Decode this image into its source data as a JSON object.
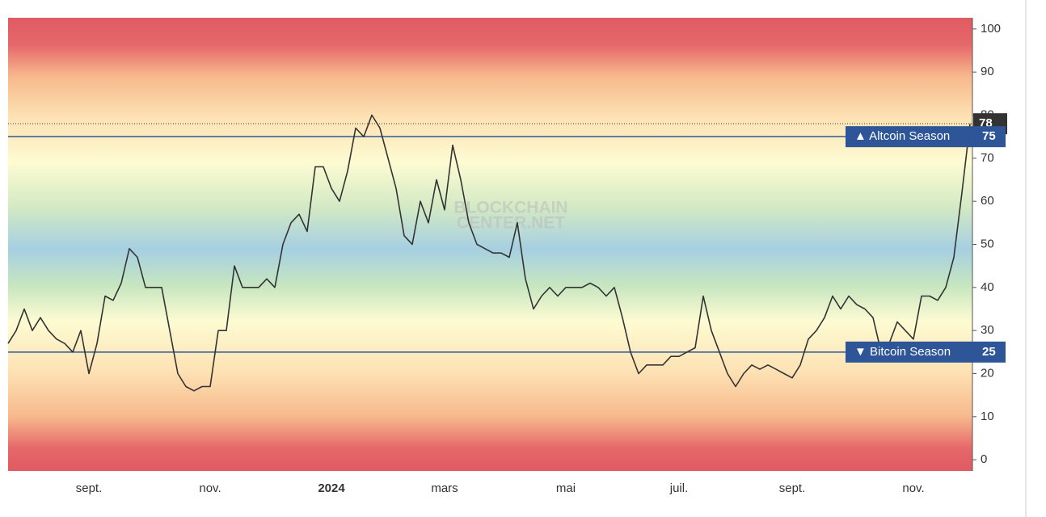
{
  "chart_data": {
    "type": "line",
    "watermark": [
      "BLOCKCHAIN",
      "CENTER.NET"
    ],
    "categories": [
      null,
      null,
      null,
      null,
      null,
      null,
      null,
      null,
      null,
      null,
      "sept.",
      null,
      null,
      null,
      null,
      null,
      null,
      null,
      null,
      null,
      null,
      null,
      null,
      null,
      null,
      "nov.",
      null,
      null,
      null,
      null,
      null,
      null,
      null,
      null,
      null,
      null,
      null,
      null,
      null,
      null,
      "2024",
      null,
      null,
      null,
      null,
      null,
      null,
      null,
      null,
      null,
      null,
      null,
      null,
      null,
      "mars",
      null,
      null,
      null,
      null,
      null,
      null,
      null,
      null,
      null,
      null,
      null,
      null,
      null,
      null,
      "mai",
      null,
      null,
      null,
      null,
      null,
      null,
      null,
      null,
      null,
      null,
      null,
      null,
      null,
      "juil.",
      null,
      null,
      null,
      null,
      null,
      null,
      null,
      null,
      null,
      null,
      null,
      null,
      null,
      "sept.",
      null,
      null,
      null,
      null,
      null,
      null,
      null,
      null,
      null,
      null,
      null,
      null,
      null,
      null,
      "nov.",
      null,
      null,
      null,
      null,
      null,
      null,
      null
    ],
    "series": [
      {
        "color": "#333333",
        "values": [
          27,
          30,
          35,
          30,
          33,
          30,
          28,
          27,
          25,
          30,
          20,
          27,
          38,
          37,
          41,
          49,
          47,
          40,
          40,
          40,
          30,
          20,
          17,
          16,
          17,
          17,
          30,
          30,
          45,
          40,
          40,
          40,
          42,
          40,
          50,
          55,
          57,
          53,
          68,
          68,
          63,
          60,
          67,
          77,
          75,
          80,
          77,
          70,
          63,
          52,
          50,
          60,
          55,
          65,
          58,
          73,
          65,
          55,
          50,
          49,
          48,
          48,
          47,
          55,
          42,
          35,
          38,
          40,
          38,
          40,
          40,
          40,
          41,
          40,
          38,
          40,
          33,
          25,
          20,
          22,
          22,
          22,
          24,
          24,
          25,
          26,
          38,
          30,
          25,
          20,
          17,
          20,
          22,
          21,
          22,
          21,
          20,
          19,
          22,
          28,
          30,
          33,
          38,
          35,
          38,
          36,
          35,
          33,
          25,
          27,
          32,
          30,
          28,
          38,
          38,
          37,
          40,
          47,
          62,
          78
        ]
      }
    ],
    "thresholds": [
      {
        "label": "▲ Altcoin Season",
        "value": 75,
        "color": "#2e5597"
      },
      {
        "label": "▼ Bitcoin Season",
        "value": 25,
        "color": "#2e5597"
      }
    ],
    "ylim": [
      -2.6,
      102.6
    ],
    "yticks": [
      0,
      10,
      20,
      30,
      40,
      50,
      60,
      70,
      80,
      90,
      100
    ]
  }
}
